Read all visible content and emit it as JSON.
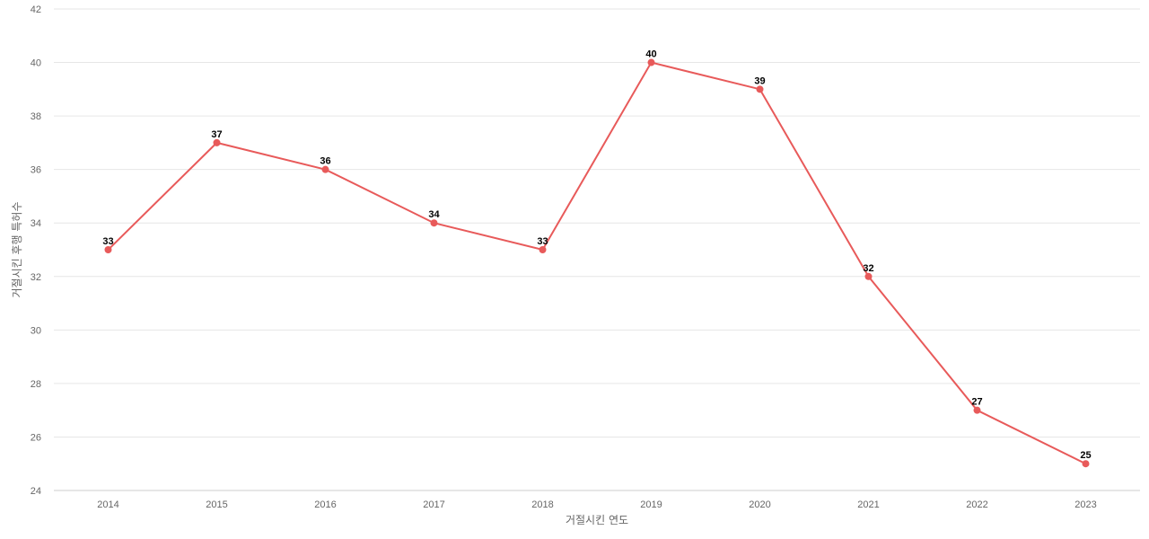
{
  "chart_data": {
    "type": "line",
    "title": "",
    "xlabel": "거절시킨 연도",
    "ylabel": "거절시킨 후행 특허수",
    "categories": [
      "2014",
      "2015",
      "2016",
      "2017",
      "2018",
      "2019",
      "2020",
      "2021",
      "2022",
      "2023"
    ],
    "series": [
      {
        "values": [
          33,
          37,
          36,
          34,
          33,
          40,
          39,
          32,
          27,
          25
        ]
      }
    ],
    "ylim": [
      24,
      42
    ],
    "yticks": [
      24,
      26,
      28,
      30,
      32,
      34,
      36,
      38,
      40,
      42
    ],
    "grid": true,
    "legend": "none",
    "line_color": "#e85a5a"
  }
}
